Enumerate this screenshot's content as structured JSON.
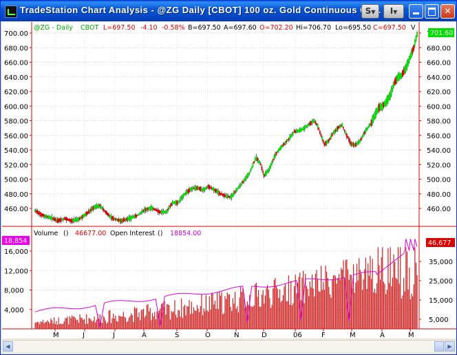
{
  "window": {
    "title": "TradeStation Chart Analysis - @ZG  Daily  [CBOT] 100 oz. Gold Continuous Co..."
  },
  "title_buttons": {
    "symbol_menu": "S",
    "interval_menu": "I"
  },
  "price_header": {
    "symbol": "@ZG - Daily",
    "exchange": "CBOT",
    "last": "L=697.50",
    "change": "-4.10",
    "pct_change": "-0.58%",
    "bid": "B=697.50",
    "ask": "A=697.60",
    "open": "O=702.20",
    "high": "Hi=706.70",
    "low": "Lo=695.50",
    "close": "C=697.50",
    "v_label": "V"
  },
  "price_axis": {
    "ticks": [
      "700.00",
      "680.00",
      "660.00",
      "640.00",
      "620.00",
      "600.00",
      "580.00",
      "560.00",
      "540.00",
      "520.00",
      "500.00",
      "480.00",
      "460.00"
    ],
    "last_marker": "701.60"
  },
  "volume_header": {
    "volume_label": "Volume",
    "volume_paren": "()",
    "volume_value": "46677.00",
    "oi_label": "Open Interest",
    "oi_paren": "()",
    "oi_value": "18854.00"
  },
  "volume_axis": {
    "left_ticks": [
      "16,000",
      "12,000",
      "8,000",
      "4,000"
    ],
    "right_ticks": [
      "35,000",
      "25,000",
      "15,000",
      "5,000"
    ],
    "left_marker": "18,854",
    "right_marker": "46,677"
  },
  "x_axis": {
    "labels": [
      "M",
      "J",
      "J",
      "A",
      "S",
      "O",
      "N",
      "D",
      "06",
      "F",
      "M",
      "A",
      "M"
    ]
  },
  "colors": {
    "up_candle": "#00dd00",
    "down_candle": "#dd0000",
    "volume_bars": "#cc2222",
    "open_interest": "#dd00dd",
    "axis": "#dd0000",
    "header_green": "#00aa00",
    "header_red": "#dd0000",
    "header_magenta": "#cc00cc"
  },
  "chart_data": {
    "type": "candlestick",
    "price": {
      "ylim": [
        438,
        705
      ],
      "months": [
        "M",
        "J",
        "J",
        "A",
        "S",
        "O",
        "N",
        "D",
        "06",
        "F",
        "M",
        "A",
        "M"
      ],
      "monthly_close": [
        428,
        434,
        435,
        437,
        459,
        470,
        493,
        507,
        575,
        562,
        580,
        594,
        697.5
      ],
      "approx_daily_path": [
        [
          0,
          457
        ],
        [
          5,
          452
        ],
        [
          10,
          449
        ],
        [
          15,
          447
        ],
        [
          20,
          443
        ],
        [
          27,
          446
        ],
        [
          33,
          443
        ],
        [
          40,
          446
        ],
        [
          47,
          454
        ],
        [
          53,
          462
        ],
        [
          58,
          464
        ],
        [
          63,
          455
        ],
        [
          70,
          446
        ],
        [
          77,
          443
        ],
        [
          84,
          446
        ],
        [
          92,
          451
        ],
        [
          98,
          458
        ],
        [
          104,
          461
        ],
        [
          112,
          455
        ],
        [
          118,
          456
        ],
        [
          123,
          468
        ],
        [
          128,
          468
        ],
        [
          134,
          480
        ],
        [
          140,
          487
        ],
        [
          146,
          488
        ],
        [
          150,
          485
        ],
        [
          155,
          490
        ],
        [
          160,
          486
        ],
        [
          165,
          481
        ],
        [
          172,
          476
        ],
        [
          176,
          476
        ],
        [
          180,
          485
        ],
        [
          186,
          496
        ],
        [
          192,
          509
        ],
        [
          198,
          530
        ],
        [
          202,
          520
        ],
        [
          205,
          505
        ],
        [
          209,
          512
        ],
        [
          214,
          530
        ],
        [
          218,
          540
        ],
        [
          223,
          548
        ],
        [
          227,
          555
        ],
        [
          232,
          565
        ],
        [
          236,
          566
        ],
        [
          241,
          570
        ],
        [
          245,
          575
        ],
        [
          250,
          580
        ],
        [
          253,
          573
        ],
        [
          256,
          560
        ],
        [
          259,
          548
        ],
        [
          263,
          553
        ],
        [
          267,
          563
        ],
        [
          271,
          570
        ],
        [
          275,
          574
        ],
        [
          279,
          560
        ],
        [
          283,
          548
        ],
        [
          287,
          547
        ],
        [
          291,
          552
        ],
        [
          296,
          566
        ],
        [
          301,
          577
        ],
        [
          305,
          590
        ],
        [
          308,
          598
        ],
        [
          311,
          600
        ],
        [
          314,
          605
        ],
        [
          318,
          615
        ],
        [
          321,
          630
        ],
        [
          325,
          640
        ],
        [
          328,
          642
        ],
        [
          332,
          652
        ],
        [
          336,
          668
        ],
        [
          339,
          680
        ],
        [
          342,
          698
        ]
      ]
    },
    "volume": {
      "left_ylim": [
        0,
        18854
      ],
      "right_ylim": [
        0,
        46677
      ],
      "last_volume": 46677,
      "last_open_interest": 18854
    }
  }
}
